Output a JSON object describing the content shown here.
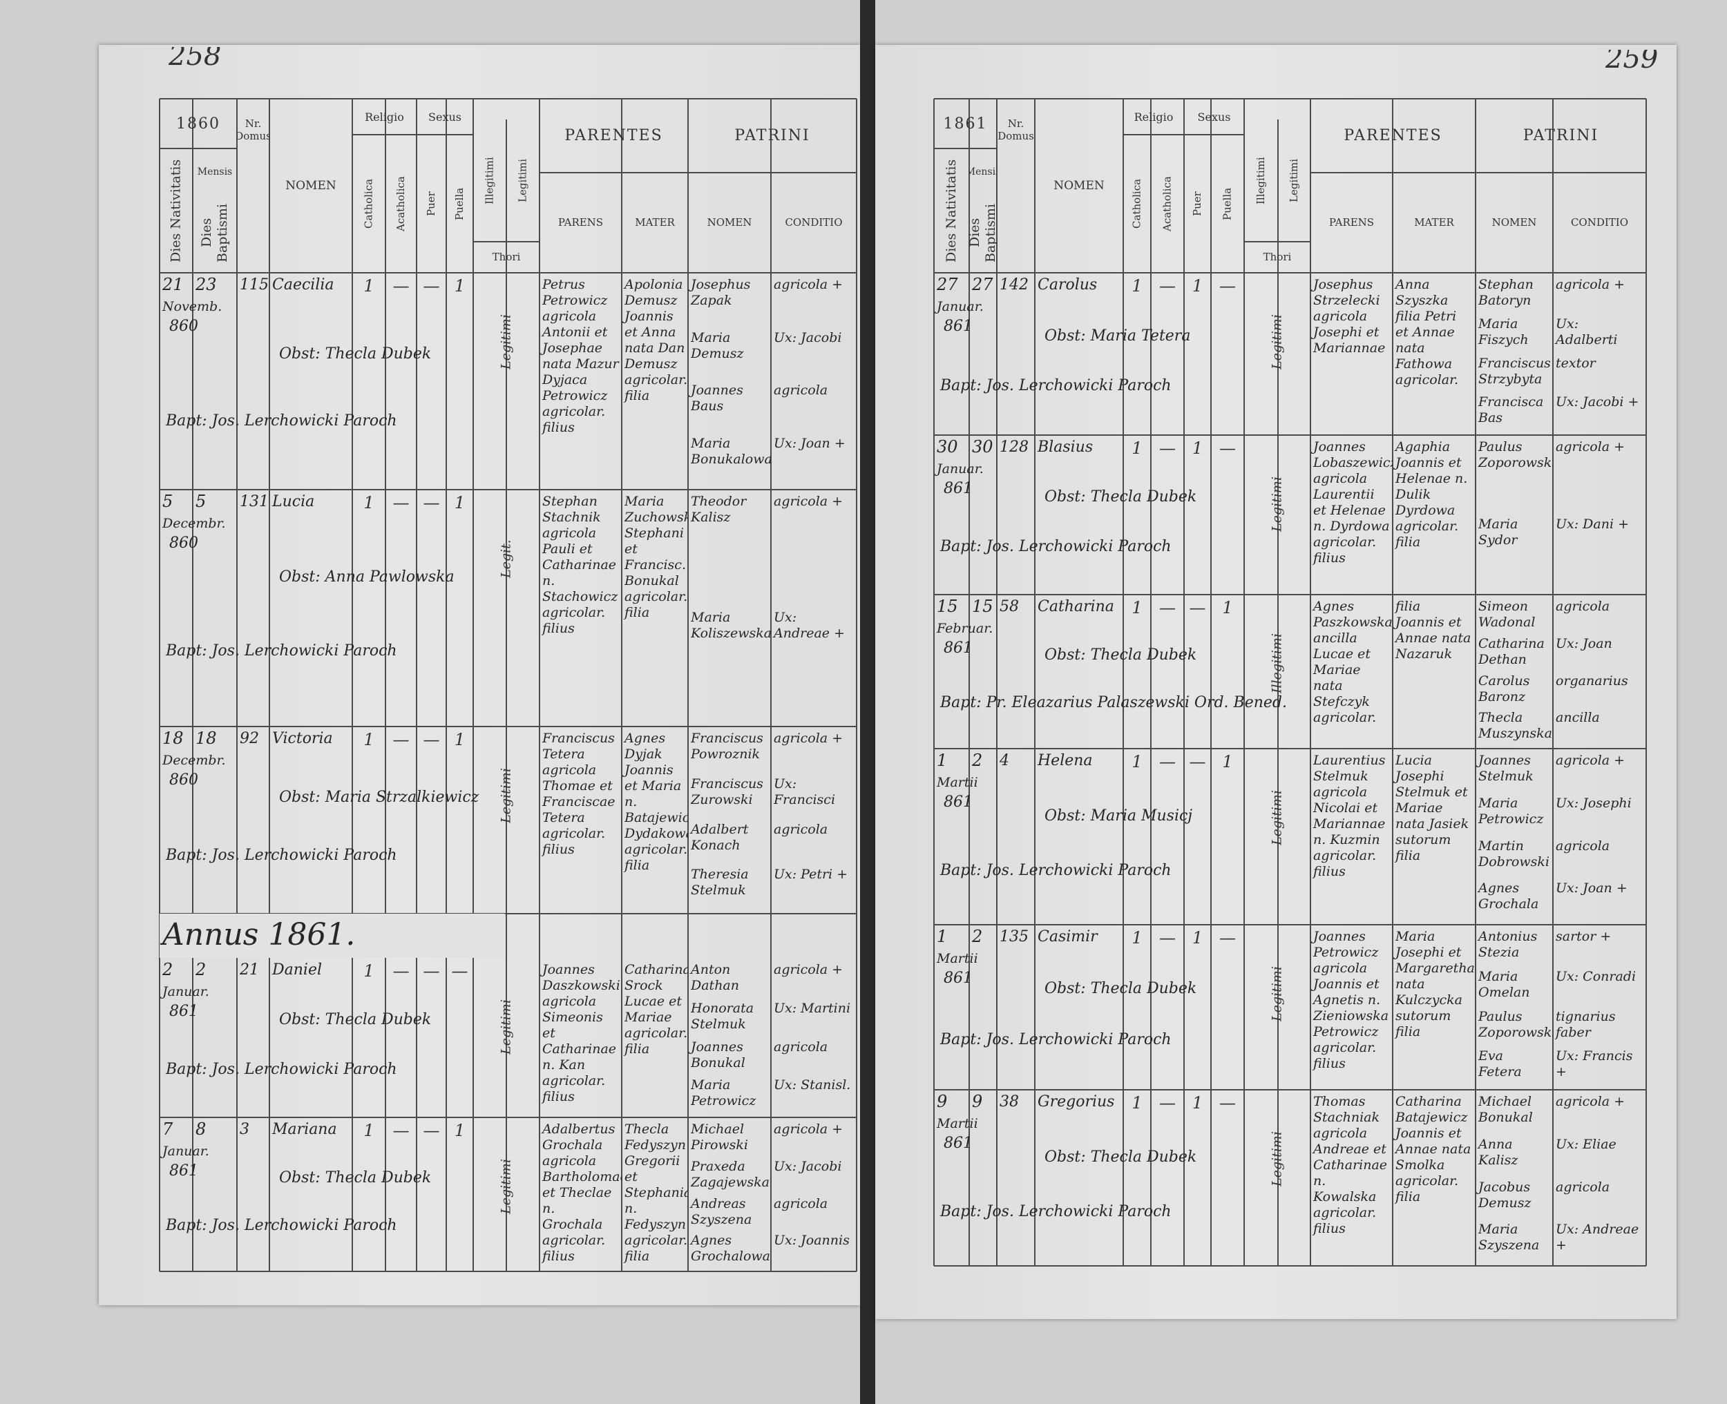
{
  "pages": [
    {
      "page_number": "258",
      "year": "1860",
      "header": {
        "dies_nativitatis": "Dies Nativitatis",
        "dies_baptismi": "Dies Baptismi",
        "mensis": "Mensis",
        "nr_domus": "Nr. Domus",
        "nomen": "NOMEN",
        "religio": "Religio",
        "catholica": "Catholica",
        "acatholica": "Acatholica",
        "sexus": "Sexus",
        "puer": "Puer",
        "puella": "Puella",
        "illegitimi": "Illegitimi",
        "legitimi": "Legitimi",
        "thori": "Thori",
        "parentes": "PARENTES",
        "parens": "PARENS",
        "mater": "MATER",
        "patrini": "PATRINI",
        "patrini_nomen": "NOMEN",
        "conditio": "CONDITIO"
      },
      "section_heading": "Annus 1861.",
      "entries": [
        {
          "dies_nativitatis": "21",
          "dies_baptismi": "23",
          "mensis": "Novemb.",
          "annus": "860",
          "nr_domus": "115",
          "nomen": "Caecilia",
          "marks": [
            "1",
            "—",
            "—",
            "1"
          ],
          "thori": "Legitimi",
          "obstetrix": "Obst: Thecla Dubek",
          "baptizans": "Bapt: Jos. Lerchowicki Paroch",
          "parens": "Petrus Petrowicz agricola Antonii et Josephae nata Mazur Dyjaca Petrowicz agricolar. filius",
          "mater": "Apolonia Demusz Joannis et Anna nata Dan Demusz agricolar. filia",
          "patrini": [
            "Josephus Zapak",
            "Maria Demusz",
            "Joannes Baus",
            "Maria Bonukalowa"
          ],
          "conditio": [
            "agricola +",
            "Ux: Jacobi",
            "agricola",
            "Ux: Joan +"
          ]
        },
        {
          "dies_nativitatis": "5",
          "dies_baptismi": "5",
          "mensis": "Decembr.",
          "annus": "860",
          "nr_domus": "131",
          "nomen": "Lucia",
          "marks": [
            "1",
            "—",
            "—",
            "1"
          ],
          "thori": "Legit.",
          "obstetrix": "Obst: Anna Pawlowska",
          "baptizans": "Bapt: Jos. Lerchowicki Paroch",
          "parens": "Stephan Stachnik agricola Pauli et Catharinae n. Stachowicz agricolar. filius",
          "mater": "Maria Zuchowska Stephani et Francisc. Bonukal agricolar. filia",
          "patrini": [
            "Theodor Kalisz",
            "Maria Koliszewska"
          ],
          "conditio": [
            "agricola +",
            "Ux: Andreae +"
          ]
        },
        {
          "dies_nativitatis": "18",
          "dies_baptismi": "18",
          "mensis": "Decembr.",
          "annus": "860",
          "nr_domus": "92",
          "nomen": "Victoria",
          "marks": [
            "1",
            "—",
            "—",
            "1"
          ],
          "thori": "Legitimi",
          "obstetrix": "Obst: Maria Strzalkiewicz",
          "baptizans": "Bapt: Jos. Lerchowicki Paroch",
          "parens": "Franciscus Tetera agricola Thomae et Franciscae Tetera agricolar. filius",
          "mater": "Agnes Dyjak Joannis et Maria n. Batajewicz Dydakowa agricolar. filia",
          "patrini": [
            "Franciscus Powroznik",
            "Franciscus Zurowski",
            "Adalbert Konach",
            "Theresia Stelmuk"
          ],
          "conditio": [
            "agricola +",
            "Ux: Francisci",
            "agricola",
            "Ux: Petri +"
          ]
        },
        {
          "dies_nativitatis": "2",
          "dies_baptismi": "2",
          "mensis": "Januar.",
          "annus": "861",
          "nr_domus": "21",
          "nomen": "Daniel",
          "marks": [
            "1",
            "—",
            "—",
            "—"
          ],
          "thori": "Legitimi",
          "obstetrix": "Obst: Thecla Dubek",
          "baptizans": "Bapt: Jos. Lerchowicki Paroch",
          "parens": "Joannes Daszkowski agricola Simeonis et Catharinae n. Kan agricolar. filius",
          "mater": "Catharina Srock Lucae et Mariae agricolar. filia",
          "patrini": [
            "Anton Dathan",
            "Honorata Stelmuk",
            "Joannes Bonukal",
            "Maria Petrowicz"
          ],
          "conditio": [
            "agricola +",
            "Ux: Martini",
            "agricola",
            "Ux: Stanisl."
          ]
        },
        {
          "dies_nativitatis": "7",
          "dies_baptismi": "8",
          "mensis": "Januar.",
          "annus": "861",
          "nr_domus": "3",
          "nomen": "Mariana",
          "marks": [
            "1",
            "—",
            "—",
            "1"
          ],
          "thori": "Legitimi",
          "obstetrix": "Obst: Thecla Dubek",
          "baptizans": "Bapt: Jos. Lerchowicki Paroch",
          "parens": "Adalbertus Grochala agricola Bartholomaei et Theclae n. Grochala agricolar. filius",
          "mater": "Thecla Fedyszyn Gregorii et Stephaniae n. Fedyszyn agricolar. filia",
          "patrini": [
            "Michael Pirowski",
            "Praxeda Zagajewska",
            "Andreas Szyszena",
            "Agnes Grochalowa"
          ],
          "conditio": [
            "agricola +",
            "Ux: Jacobi",
            "agricola",
            "Ux: Joannis"
          ]
        }
      ]
    },
    {
      "page_number": "259",
      "year": "1861",
      "header": {
        "dies_nativitatis": "Dies Nativitatis",
        "dies_baptismi": "Dies Baptismi",
        "mensis": "Mensis",
        "nr_domus": "Nr. Domus",
        "nomen": "NOMEN",
        "religio": "Religio",
        "catholica": "Catholica",
        "acatholica": "Acatholica",
        "sexus": "Sexus",
        "puer": "Puer",
        "puella": "Puella",
        "illegitimi": "Illegitimi",
        "legitimi": "Legitimi",
        "thori": "Thori",
        "parentes": "PARENTES",
        "parens": "PARENS",
        "mater": "MATER",
        "patrini": "PATRINI",
        "patrini_nomen": "NOMEN",
        "conditio": "CONDITIO"
      },
      "entries": [
        {
          "dies_nativitatis": "27",
          "dies_baptismi": "27",
          "mensis": "Januar.",
          "annus": "861",
          "nr_domus": "142",
          "nomen": "Carolus",
          "marks": [
            "1",
            "—",
            "1",
            "—"
          ],
          "thori": "Legitimi",
          "obstetrix": "Obst: Maria Tetera",
          "baptizans": "Bapt: Jos. Lerchowicki Paroch",
          "parens": "Josephus Strzelecki agricola Josephi et Mariannae",
          "mater": "Anna Szyszka filia Petri et Annae nata Fathowa agricolar.",
          "patrini": [
            "Stephan Batoryn",
            "Maria Fiszych",
            "Franciscus Strzybyta",
            "Francisca Bas"
          ],
          "conditio": [
            "agricola +",
            "Ux: Adalberti",
            "textor",
            "Ux: Jacobi +"
          ]
        },
        {
          "dies_nativitatis": "30",
          "dies_baptismi": "30",
          "mensis": "Januar.",
          "annus": "861",
          "nr_domus": "128",
          "nomen": "Blasius",
          "marks": [
            "1",
            "—",
            "1",
            "—"
          ],
          "thori": "Legitimi",
          "obstetrix": "Obst: Thecla Dubek",
          "baptizans": "Bapt: Jos. Lerchowicki Paroch",
          "parens": "Joannes Lobaszewicz agricola Laurentii et Helenae n. Dyrdowa agricolar. filius",
          "mater": "Agaphia Joannis et Helenae n. Dulik Dyrdowa agricolar. filia",
          "patrini": [
            "Paulus Zoporowski",
            "Maria Sydor"
          ],
          "conditio": [
            "agricola +",
            "Ux: Dani +"
          ]
        },
        {
          "dies_nativitatis": "15",
          "dies_baptismi": "15",
          "mensis": "Februar.",
          "annus": "861",
          "nr_domus": "58",
          "nomen": "Catharina",
          "marks": [
            "1",
            "—",
            "—",
            "1"
          ],
          "thori": "Illegitimi",
          "obstetrix": "Obst: Thecla Dubek",
          "baptizans": "Bapt: Pr. Eleazarius Palaszewski Ord. Bened.",
          "parens": "Agnes Paszkowska ancilla Lucae et Mariae nata Stefczyk agricolar.",
          "mater": "filia Joannis et Annae nata Nazaruk",
          "patrini": [
            "Simeon Wadonal",
            "Catharina Dethan",
            "Carolus Baronz",
            "Thecla Muszynska"
          ],
          "conditio": [
            "agricola",
            "Ux: Joan",
            "organarius",
            "ancilla"
          ]
        },
        {
          "dies_nativitatis": "1",
          "dies_baptismi": "2",
          "mensis": "Martii",
          "annus": "861",
          "nr_domus": "4",
          "nomen": "Helena",
          "marks": [
            "1",
            "—",
            "—",
            "1"
          ],
          "thori": "Legitimi",
          "obstetrix": "Obst: Maria Musicj",
          "baptizans": "Bapt: Jos. Lerchowicki Paroch",
          "parens": "Laurentius Stelmuk agricola Nicolai et Mariannae n. Kuzmin agricolar. filius",
          "mater": "Lucia Josephi Stelmuk et Mariae nata Jasiek sutorum filia",
          "patrini": [
            "Joannes Stelmuk",
            "Maria Petrowicz",
            "Martin Dobrowski",
            "Agnes Grochala"
          ],
          "conditio": [
            "agricola +",
            "Ux: Josephi",
            "agricola",
            "Ux: Joan +"
          ]
        },
        {
          "dies_nativitatis": "1",
          "dies_baptismi": "2",
          "mensis": "Martii",
          "annus": "861",
          "nr_domus": "135",
          "nomen": "Casimir",
          "marks": [
            "1",
            "—",
            "1",
            "—"
          ],
          "thori": "Legitimi",
          "obstetrix": "Obst: Thecla Dubek",
          "baptizans": "Bapt: Jos. Lerchowicki Paroch",
          "parens": "Joannes Petrowicz agricola Joannis et Agnetis n. Zieniowska Petrowicz agricolar. filius",
          "mater": "Maria Josephi et Margarethae nata Kulczycka sutorum filia",
          "patrini": [
            "Antonius Stezia",
            "Maria Omelan",
            "Paulus Zoporowski",
            "Eva Fetera"
          ],
          "conditio": [
            "sartor +",
            "Ux: Conradi",
            "tignarius faber",
            "Ux: Francis +"
          ]
        },
        {
          "dies_nativitatis": "9",
          "dies_baptismi": "9",
          "mensis": "Martii",
          "annus": "861",
          "nr_domus": "38",
          "nomen": "Gregorius",
          "marks": [
            "1",
            "—",
            "1",
            "—"
          ],
          "thori": "Legitimi",
          "obstetrix": "Obst: Thecla Dubek",
          "baptizans": "Bapt: Jos. Lerchowicki Paroch",
          "parens": "Thomas Stachniak agricola Andreae et Catharinae n. Kowalska agricolar. filius",
          "mater": "Catharina Batajewicz Joannis et Annae nata Smolka agricolar. filia",
          "patrini": [
            "Michael Bonukal",
            "Anna Kalisz",
            "Jacobus Demusz",
            "Maria Szyszena"
          ],
          "conditio": [
            "agricola +",
            "Ux: Eliae",
            "agricola",
            "Ux: Andreae +"
          ]
        }
      ]
    }
  ]
}
